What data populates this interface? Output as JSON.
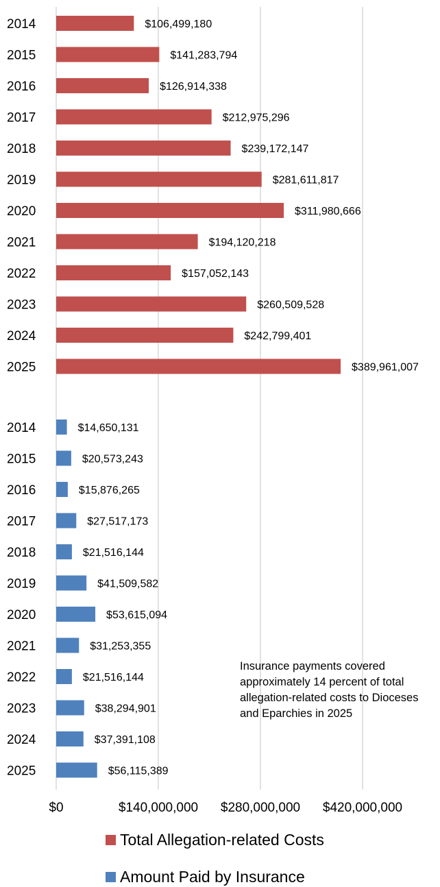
{
  "chart_data": {
    "type": "bar",
    "orientation": "horizontal",
    "categories": [
      "2014",
      "2015",
      "2016",
      "2017",
      "2018",
      "2019",
      "2020",
      "2021",
      "2022",
      "2023",
      "2024",
      "2025"
    ],
    "series": [
      {
        "name": "Total Allegation-related Costs",
        "color": "#c0504d",
        "values": [
          106499180,
          141283794,
          126914338,
          212975296,
          239172147,
          281611817,
          311980666,
          194120218,
          157052143,
          260509528,
          242799401,
          389961007
        ],
        "labels": [
          "$106,499,180",
          "$141,283,794",
          "$126,914,338",
          "$212,975,296",
          "$239,172,147",
          "$281,611,817",
          "$311,980,666",
          "$194,120,218",
          "$157,052,143",
          "$260,509,528",
          "$242,799,401",
          "$389,961,007"
        ]
      },
      {
        "name": "Amount Paid by Insurance",
        "color": "#4f81bd",
        "values": [
          14650131,
          20573243,
          15876265,
          27517173,
          21516144,
          41509582,
          53615094,
          31253355,
          21516144,
          38294901,
          37391108,
          56115389
        ],
        "labels": [
          "$14,650,131",
          "$20,573,243",
          "$15,876,265",
          "$27,517,173",
          "$21,516,144",
          "$41,509,582",
          "$53,615,094",
          "$31,253,355",
          "$21,516,144",
          "$38,294,901",
          "$37,391,108",
          "$56,115,389"
        ]
      }
    ],
    "xlim": [
      0,
      560000000
    ],
    "xticks": [
      0,
      140000000,
      280000000,
      420000000
    ],
    "xtick_labels": [
      "$0",
      "$140,000,000",
      "$280,000,000",
      "$420,000,000"
    ],
    "grid": "vertical",
    "legend_position": "bottom",
    "annotation": "Insurance payments covered approximately 14 percent of total allegation-related costs to Dioceses and Eparchies in 2025",
    "title": "",
    "xlabel": "",
    "ylabel": ""
  }
}
